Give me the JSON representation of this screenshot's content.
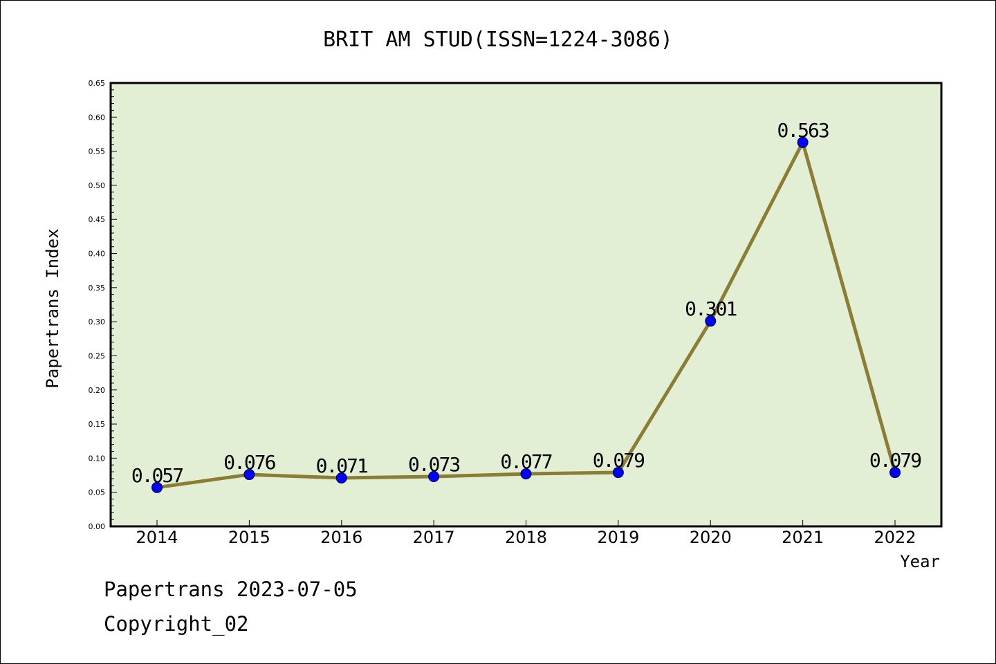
{
  "chart_data": {
    "type": "line",
    "title": "BRIT AM STUD(ISSN=1224-3086)",
    "xlabel": "Year",
    "ylabel": "Papertrans Index",
    "categories": [
      "2014",
      "2015",
      "2016",
      "2017",
      "2018",
      "2019",
      "2020",
      "2021",
      "2022"
    ],
    "series": [
      {
        "values": [
          0.057,
          0.076,
          0.071,
          0.073,
          0.077,
          0.079,
          0.301,
          0.563,
          0.079
        ],
        "labels": [
          "0.057",
          "0.076",
          "0.071",
          "0.073",
          "0.077",
          "0.079",
          "0.301",
          "0.563",
          "0.079"
        ]
      }
    ],
    "ylim": [
      0,
      0.65
    ],
    "yticks": [
      "0.00",
      "0.05",
      "0.10",
      "0.15",
      "0.20",
      "0.25",
      "0.30",
      "0.35",
      "0.40",
      "0.45",
      "0.50",
      "0.55",
      "0.60",
      "0.65"
    ],
    "grid": false,
    "colors": {
      "plot_background": "#e2efd4",
      "line": "#8b7d34",
      "marker": "#0000ff"
    }
  },
  "footer": {
    "line1": "Papertrans 2023-07-05",
    "line2": "Copyright_02"
  }
}
